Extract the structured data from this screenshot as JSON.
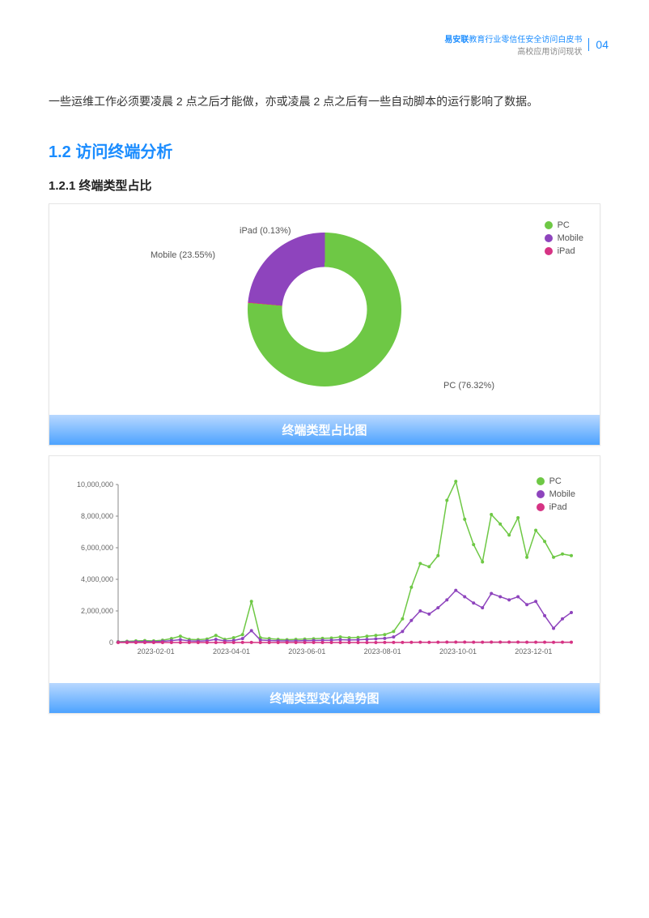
{
  "header": {
    "line1_brand": "易安联",
    "line1_rest": "教育行业零信任安全访问白皮书",
    "line2": "高校应用访问现状",
    "page_num": "04"
  },
  "intro_text": "一些运维工作必须要凌晨 2 点之后才能做，亦或凌晨 2 点之后有一些自动脚本的运行影响了数据。",
  "section_h1": "1.2 访问终端分析",
  "section_h2": "1.2.1 终端类型占比",
  "donut_chart": {
    "title": "终端类型占比图",
    "slices": [
      {
        "name": "PC",
        "pct": 76.32,
        "color": "#6ec845",
        "label": "PC (76.32%)"
      },
      {
        "name": "Mobile",
        "pct": 23.55,
        "color": "#8e44bd",
        "label": "Mobile (23.55%)"
      },
      {
        "name": "iPad",
        "pct": 0.13,
        "color": "#d63384",
        "label": "iPad (0.13%)"
      }
    ],
    "legend": [
      {
        "name": "PC",
        "color": "#6ec845"
      },
      {
        "name": "Mobile",
        "color": "#8e44bd"
      },
      {
        "name": "iPad",
        "color": "#d63384"
      }
    ]
  },
  "line_chart": {
    "title": "终端类型变化趋势图",
    "ylim": [
      0,
      10000000
    ],
    "yticks": [
      0,
      2000000,
      4000000,
      6000000,
      8000000,
      10000000
    ],
    "ytick_labels": [
      "0",
      "2,000,000",
      "4,000,000",
      "6,000,000",
      "8,000,000",
      "10,000,000"
    ],
    "xticks": [
      "2023-02-01",
      "2023-04-01",
      "2023-06-01",
      "2023-08-01",
      "2023-10-01",
      "2023-12-01"
    ],
    "n_points": 52,
    "legend": [
      {
        "name": "PC",
        "color": "#6ec845"
      },
      {
        "name": "Mobile",
        "color": "#8e44bd"
      },
      {
        "name": "iPad",
        "color": "#d63384"
      }
    ],
    "series": {
      "PC": {
        "color": "#6ec845",
        "values": [
          50000,
          80000,
          100000,
          120000,
          100000,
          150000,
          250000,
          400000,
          200000,
          180000,
          220000,
          450000,
          200000,
          300000,
          500000,
          2600000,
          300000,
          250000,
          200000,
          180000,
          200000,
          220000,
          240000,
          260000,
          280000,
          350000,
          300000,
          320000,
          400000,
          450000,
          500000,
          700000,
          1500000,
          3500000,
          5000000,
          4800000,
          5500000,
          9000000,
          10200000,
          7800000,
          6200000,
          5100000,
          8100000,
          7500000,
          6800000,
          7900000,
          5400000,
          7100000,
          6400000,
          5400000,
          5600000,
          5500000
        ]
      },
      "Mobile": {
        "color": "#8e44bd",
        "values": [
          30000,
          40000,
          50000,
          60000,
          50000,
          80000,
          120000,
          180000,
          100000,
          90000,
          110000,
          200000,
          100000,
          130000,
          250000,
          750000,
          160000,
          130000,
          110000,
          100000,
          100000,
          120000,
          130000,
          140000,
          150000,
          180000,
          160000,
          170000,
          200000,
          230000,
          260000,
          350000,
          700000,
          1400000,
          2000000,
          1800000,
          2200000,
          2700000,
          3300000,
          2900000,
          2500000,
          2200000,
          3100000,
          2900000,
          2700000,
          2900000,
          2400000,
          2600000,
          1700000,
          900000,
          1500000,
          1900000
        ]
      },
      "iPad": {
        "color": "#d63384",
        "values": [
          1000,
          1200,
          1500,
          1400,
          1300,
          1600,
          2000,
          2500,
          1800,
          1700,
          1900,
          2800,
          1800,
          2000,
          3500,
          9000,
          2200,
          2000,
          1800,
          1700,
          1800,
          1900,
          2000,
          2100,
          2200,
          2500,
          2300,
          2400,
          2700,
          3000,
          3300,
          4200,
          7500,
          13000,
          18000,
          16000,
          19000,
          23000,
          26000,
          24000,
          22000,
          20000,
          26000,
          24000,
          23000,
          24000,
          21000,
          22000,
          18000,
          15000,
          17000,
          18000
        ]
      }
    }
  }
}
